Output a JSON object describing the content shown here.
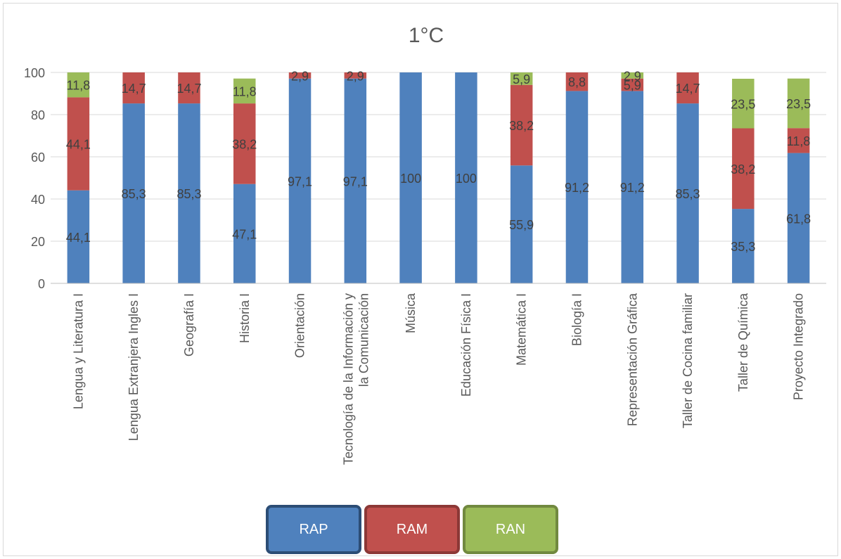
{
  "chart_data": {
    "type": "bar",
    "stacked": true,
    "title": "1°C",
    "xlabel": "",
    "ylabel": "",
    "ylim": [
      0,
      100
    ],
    "yticks": [
      0,
      20,
      40,
      60,
      80,
      100
    ],
    "grid": true,
    "legend_placement": "bottom",
    "categories": [
      "Lengua y Literatura I",
      "Lengua Extranjera Ingles I",
      "Geografía I",
      "Historia I",
      "Orientación",
      "Tecnología de la Información y la Comunicación",
      "Música",
      "Educación Física I",
      "Matemática I",
      "Biología I",
      "Representación Gráfica",
      "Taller de Cocina familiar",
      "Taller de Química",
      "Proyecto Integrado"
    ],
    "series": [
      {
        "name": "RAP",
        "color": "#4f81bd",
        "values": [
          44.1,
          85.3,
          85.3,
          47.1,
          97.1,
          97.1,
          100,
          100,
          55.9,
          91.2,
          91.2,
          85.3,
          35.3,
          61.8
        ]
      },
      {
        "name": "RAM",
        "color": "#c0504d",
        "values": [
          44.1,
          14.7,
          14.7,
          38.2,
          2.9,
          2.9,
          0,
          0,
          38.2,
          8.8,
          5.9,
          14.7,
          38.2,
          11.8
        ]
      },
      {
        "name": "RAN",
        "color": "#9bbb59",
        "values": [
          11.8,
          0,
          0,
          11.8,
          0,
          0,
          0,
          0,
          5.9,
          0,
          2.9,
          0,
          23.5,
          23.5
        ]
      }
    ]
  }
}
